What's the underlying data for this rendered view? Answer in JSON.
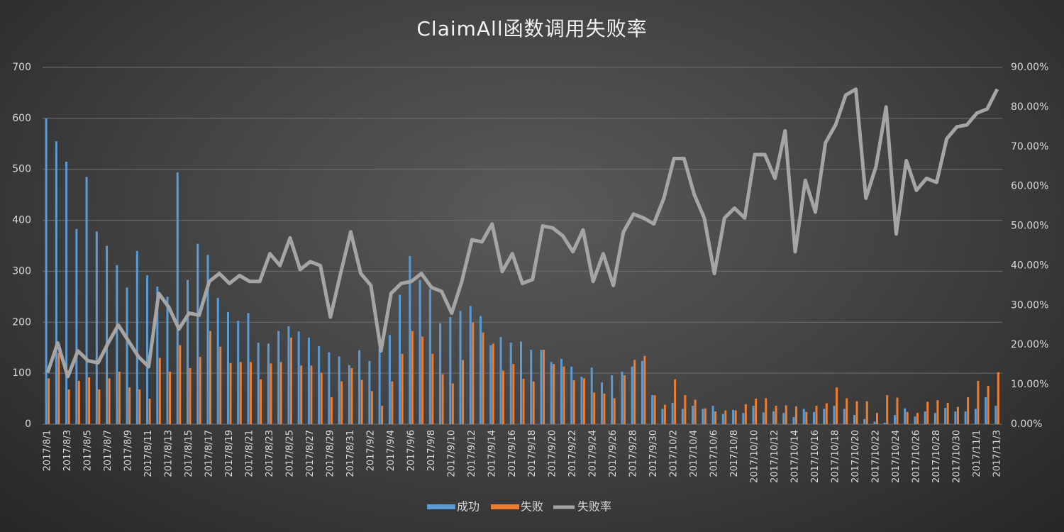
{
  "chart_data": {
    "type": "bar",
    "title": "ClaimAll函数调用失败率",
    "categories": [
      "2017/8/1",
      null,
      "2017/8/3",
      null,
      "2017/8/5",
      null,
      "2017/8/7",
      null,
      "2017/8/9",
      null,
      "2017/8/11",
      null,
      "2017/8/13",
      null,
      "2017/8/15",
      null,
      "2017/8/17",
      null,
      "2017/8/19",
      null,
      "2017/8/21",
      null,
      "2017/8/23",
      null,
      "2017/8/25",
      null,
      "2017/8/27",
      null,
      "2017/8/29",
      null,
      "2017/8/31",
      null,
      "2017/9/2",
      null,
      "2017/9/4",
      null,
      "2017/9/6",
      null,
      "2017/9/8",
      null,
      "2017/9/10",
      null,
      "2017/9/12",
      null,
      "2017/9/14",
      null,
      "2017/9/16",
      null,
      "2017/9/18",
      null,
      "2017/9/20",
      null,
      "2017/9/22",
      null,
      "2017/9/24",
      null,
      "2017/9/26",
      null,
      "2017/9/28",
      null,
      "2017/9/30",
      null,
      "2017/10/2",
      null,
      "2017/10/4",
      null,
      "2017/10/6",
      null,
      "2017/10/8",
      null,
      "2017/10/10",
      null,
      "2017/10/12",
      null,
      "2017/10/14",
      null,
      "2017/10/16",
      null,
      "2017/10/18",
      null,
      "2017/10/20",
      null,
      "2017/10/22",
      null,
      "2017/10/24",
      null,
      "2017/10/26",
      null,
      "2017/10/28",
      null,
      "2017/10/30",
      null,
      "2017/11/1",
      null,
      "2017/11/3"
    ],
    "series": [
      {
        "name": "成功",
        "type": "bar",
        "axis": "y",
        "color": "#5b9bd5",
        "values": [
          600,
          555,
          515,
          383,
          485,
          378,
          350,
          312,
          268,
          340,
          292,
          270,
          250,
          494,
          283,
          354,
          332,
          248,
          220,
          203,
          218,
          160,
          158,
          183,
          192,
          182,
          170,
          153,
          141,
          133,
          116,
          145,
          124,
          148,
          175,
          254,
          330,
          283,
          265,
          198,
          210,
          222,
          232,
          212,
          155,
          171,
          160,
          162,
          146,
          146,
          122,
          128,
          113,
          93,
          111,
          82,
          96,
          103,
          113,
          124,
          57,
          30,
          42,
          30,
          36,
          30,
          36,
          20,
          28,
          22,
          36,
          23,
          25,
          22,
          14,
          30,
          24,
          30,
          36,
          30,
          18,
          10,
          5,
          3,
          18,
          31,
          15,
          25,
          22,
          32,
          25,
          25,
          30,
          53,
          36
        ]
      },
      {
        "name": "失败",
        "type": "bar",
        "axis": "y",
        "color": "#ed7d31",
        "values": [
          90,
          140,
          68,
          85,
          92,
          68,
          90,
          103,
          72,
          68,
          50,
          130,
          103,
          155,
          110,
          132,
          183,
          152,
          120,
          122,
          122,
          88,
          119,
          122,
          170,
          115,
          115,
          101,
          53,
          84,
          110,
          87,
          65,
          36,
          84,
          138,
          183,
          172,
          138,
          98,
          80,
          126,
          200,
          180,
          158,
          105,
          118,
          89,
          84,
          146,
          118,
          113,
          86,
          90,
          62,
          60,
          51,
          96,
          126,
          134,
          57,
          38,
          88,
          57,
          48,
          31,
          25,
          27,
          27,
          39,
          50,
          51,
          36,
          37,
          35,
          24,
          36,
          41,
          72,
          51,
          45,
          45,
          22,
          57,
          52,
          24,
          22,
          44,
          47,
          42,
          34,
          53,
          85,
          75,
          102
        ]
      },
      {
        "name": "失败率",
        "type": "line",
        "axis": "y2",
        "color": "#a5a5a5",
        "values": [
          13,
          20.5,
          12,
          18.5,
          16,
          15.5,
          20.5,
          25,
          21,
          17,
          14.5,
          33,
          29.5,
          24,
          28,
          27.5,
          36,
          38,
          35.5,
          37.5,
          36,
          36,
          43,
          40,
          47,
          39,
          41,
          40,
          27,
          38,
          48.5,
          38,
          35,
          18.5,
          33,
          35.5,
          36,
          38,
          34.5,
          33.5,
          28,
          36,
          46.5,
          46,
          50.5,
          38.5,
          43,
          35.5,
          36.5,
          50,
          49.5,
          47.5,
          43.5,
          49,
          36,
          43,
          35,
          48.5,
          53,
          52,
          50.5,
          57,
          67,
          67,
          58,
          52,
          38,
          52,
          54.5,
          52,
          68,
          68,
          62,
          74,
          43.5,
          61.5,
          53.5,
          71,
          75.5,
          83,
          84.5,
          57,
          65,
          80,
          48,
          66.5,
          59,
          62,
          61,
          72,
          75,
          75.5,
          78.5,
          79.5,
          84.5
        ]
      }
    ],
    "ylim": [
      0,
      700
    ],
    "yticks": [
      0,
      100,
      200,
      300,
      400,
      500,
      600,
      700
    ],
    "y2lim": [
      0,
      90
    ],
    "y2ticks": [
      {
        "value": 0,
        "label": "0.00%"
      },
      {
        "value": 10,
        "label": "10.00%"
      },
      {
        "value": 20,
        "label": "20.00%"
      },
      {
        "value": 30,
        "label": "30.00%"
      },
      {
        "value": 40,
        "label": "40.00%"
      },
      {
        "value": 50,
        "label": "50.00%"
      },
      {
        "value": 60,
        "label": "60.00%"
      },
      {
        "value": 70,
        "label": "70.00%"
      },
      {
        "value": 80,
        "label": "80.00%"
      },
      {
        "value": 90,
        "label": "90.00%"
      }
    ],
    "grid": true,
    "legend": "bottom"
  }
}
